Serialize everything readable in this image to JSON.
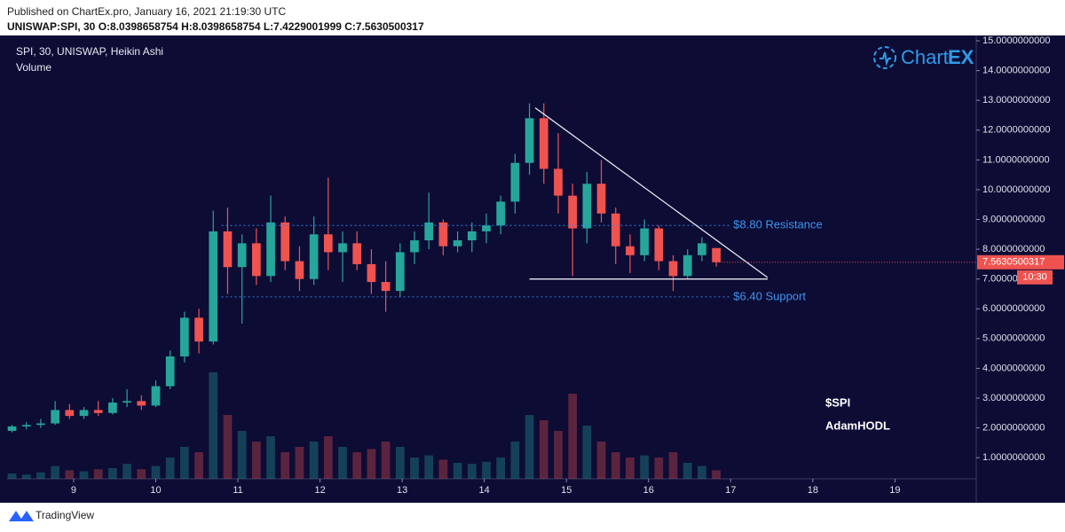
{
  "published": "Published on ChartEx.pro, January 16, 2021 21:19:30 UTC",
  "ohlc": "UNISWAP:SPI, 30  O:8.0398658754  H:8.0398658754  L:7.4229001999  C:7.5630500317",
  "logo": {
    "main": "Chart",
    "accent": "EX"
  },
  "notes": [
    "$SPI",
    "AdamHODL"
  ],
  "footer": "TradingView",
  "chart_data": {
    "type": "candlestick",
    "title": "SPI, 30, UNISWAP, Heikin Ashi",
    "subtitle": "Volume",
    "up_color": "#26a69a",
    "down_color": "#ef5350",
    "x": [
      8.25,
      8.425,
      8.6,
      8.775,
      8.95,
      9.125,
      9.3,
      9.475,
      9.65,
      9.825,
      10.0,
      10.175,
      10.35,
      10.525,
      10.7,
      10.875,
      11.05,
      11.225,
      11.4,
      11.575,
      11.75,
      11.925,
      12.1,
      12.275,
      12.45,
      12.625,
      12.8,
      12.975,
      13.15,
      13.325,
      13.5,
      13.675,
      13.85,
      14.025,
      14.2,
      14.375,
      14.55,
      14.725,
      14.9,
      15.075,
      15.25,
      15.425,
      15.6,
      15.775,
      15.95,
      16.125,
      16.3,
      16.475,
      16.65,
      16.825
    ],
    "open": [
      1.9,
      2.05,
      2.1,
      2.15,
      2.6,
      2.4,
      2.6,
      2.5,
      2.85,
      2.9,
      2.75,
      3.4,
      4.4,
      5.7,
      4.9,
      8.6,
      7.4,
      8.2,
      7.1,
      8.9,
      7.6,
      7.0,
      8.5,
      7.9,
      8.2,
      7.5,
      6.9,
      6.6,
      7.9,
      8.3,
      8.9,
      8.1,
      8.3,
      8.6,
      8.8,
      9.6,
      10.9,
      12.4,
      10.7,
      9.8,
      8.7,
      10.2,
      9.2,
      8.1,
      7.8,
      8.7,
      7.6,
      7.1,
      7.8,
      8.04
    ],
    "high": [
      2.1,
      2.2,
      2.3,
      2.9,
      2.8,
      2.7,
      2.9,
      3.0,
      3.3,
      3.1,
      3.6,
      4.6,
      5.9,
      6.0,
      9.3,
      9.4,
      8.5,
      8.7,
      9.8,
      9.1,
      8.1,
      9.1,
      10.4,
      8.6,
      8.6,
      8.0,
      7.6,
      8.2,
      8.6,
      9.9,
      9.0,
      8.6,
      8.9,
      9.2,
      9.8,
      11.2,
      12.9,
      12.9,
      11.9,
      10.2,
      10.6,
      11.0,
      9.4,
      8.5,
      9.0,
      8.8,
      7.8,
      8.0,
      8.4,
      8.04
    ],
    "low": [
      1.85,
      1.95,
      2.0,
      2.1,
      2.3,
      2.3,
      2.4,
      2.45,
      2.7,
      2.6,
      2.7,
      3.3,
      4.2,
      4.5,
      4.8,
      6.5,
      5.5,
      6.8,
      6.9,
      7.3,
      6.6,
      6.8,
      7.3,
      6.9,
      7.3,
      6.5,
      5.9,
      6.4,
      7.5,
      8.0,
      7.8,
      7.9,
      7.9,
      8.2,
      8.5,
      9.2,
      10.5,
      10.2,
      9.2,
      7.1,
      8.2,
      8.9,
      7.5,
      7.2,
      7.6,
      7.3,
      6.6,
      7.0,
      7.6,
      7.42
    ],
    "close": [
      2.05,
      2.1,
      2.15,
      2.6,
      2.4,
      2.6,
      2.5,
      2.85,
      2.9,
      2.75,
      3.4,
      4.4,
      5.7,
      4.9,
      8.6,
      7.4,
      8.2,
      7.1,
      8.9,
      7.6,
      7.0,
      8.5,
      7.9,
      8.2,
      7.5,
      6.9,
      6.6,
      7.9,
      8.3,
      8.9,
      8.1,
      8.3,
      8.6,
      8.8,
      9.6,
      10.9,
      12.4,
      10.7,
      9.8,
      8.7,
      10.2,
      9.2,
      8.1,
      7.8,
      8.7,
      7.6,
      7.1,
      7.8,
      8.2,
      7.563
    ],
    "volume": [
      5,
      4,
      6,
      12,
      8,
      7,
      9,
      10,
      14,
      9,
      12,
      20,
      30,
      25,
      100,
      60,
      45,
      35,
      40,
      25,
      30,
      35,
      40,
      30,
      25,
      28,
      35,
      30,
      20,
      22,
      18,
      15,
      14,
      16,
      20,
      35,
      60,
      55,
      45,
      80,
      50,
      35,
      25,
      20,
      22,
      20,
      25,
      15,
      12,
      8
    ],
    "xlim": [
      8.19,
      19.99
    ],
    "xticks": [
      9,
      10,
      11,
      12,
      13,
      14,
      15,
      16,
      17,
      18,
      19
    ],
    "ylim": [
      0.29,
      15.18
    ],
    "yticks": [
      {
        "value": 1,
        "label": "1.0000000000"
      },
      {
        "value": 2,
        "label": "2.0000000000"
      },
      {
        "value": 3,
        "label": "3.0000000000"
      },
      {
        "value": 4,
        "label": "4.0000000000"
      },
      {
        "value": 5,
        "label": "5.0000000000"
      },
      {
        "value": 6,
        "label": "6.0000000000"
      },
      {
        "value": 7,
        "label": "7.0000000000"
      },
      {
        "value": 8,
        "label": "8.0000000000"
      },
      {
        "value": 9,
        "label": "9.0000000000"
      },
      {
        "value": 10,
        "label": "10.0000000000"
      },
      {
        "value": 11,
        "label": "11.0000000000"
      },
      {
        "value": 12,
        "label": "12.0000000000"
      },
      {
        "value": 13,
        "label": "13.0000000000"
      },
      {
        "value": 14,
        "label": "14.0000000000"
      },
      {
        "value": 15,
        "label": "15.0000000000"
      }
    ],
    "trendlines": [
      {
        "x": [
          14.62,
          17.45
        ],
        "y": [
          12.75,
          7.05
        ]
      },
      {
        "x": [
          14.55,
          17.45
        ],
        "y": [
          7.0,
          7.0
        ]
      }
    ],
    "levels": [
      {
        "value": 8.8,
        "label": "$8.80 Resistance",
        "x": [
          10.8,
          17.0
        ]
      },
      {
        "value": 6.4,
        "label": "$6.40 Support",
        "x": [
          10.8,
          17.0
        ]
      }
    ],
    "last_price": {
      "value": 7.5630500317,
      "time": "10:30"
    }
  }
}
